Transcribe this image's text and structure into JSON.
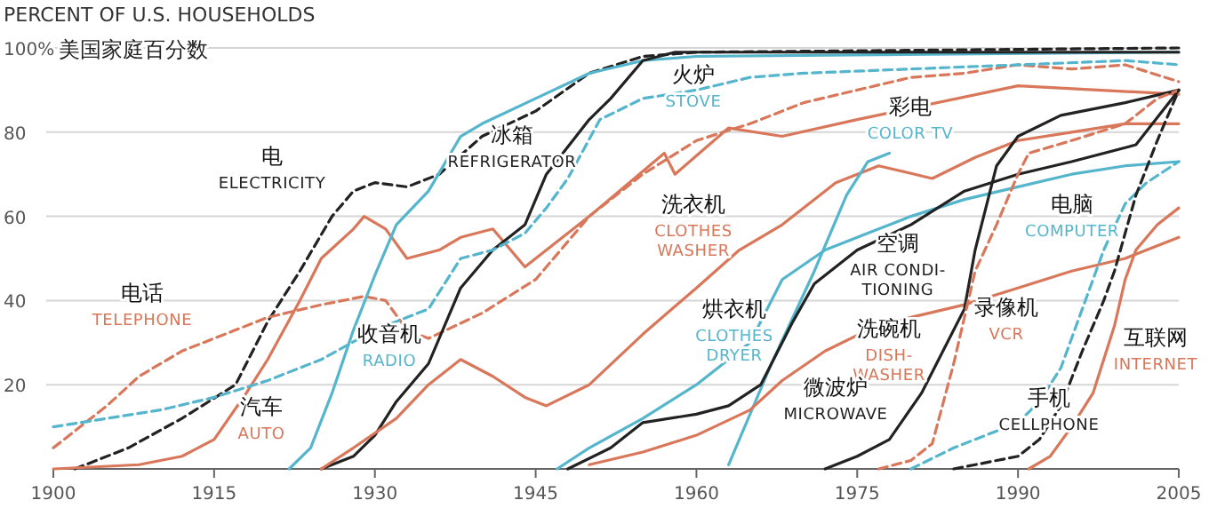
{
  "chart_data": {
    "type": "line",
    "title": "PERCENT OF U.S. HOUSEHOLDS",
    "subtitle": "美国家庭百分数",
    "xlim": [
      1900,
      2005
    ],
    "ylim": [
      0,
      100
    ],
    "xticks": [
      1900,
      1915,
      1930,
      1945,
      1960,
      1975,
      1990,
      2005
    ],
    "yticks": [
      {
        "value": 20,
        "label": "20"
      },
      {
        "value": 40,
        "label": "40"
      },
      {
        "value": 60,
        "label": "60"
      },
      {
        "value": 80,
        "label": "80"
      },
      {
        "value": 100,
        "label": "100%"
      }
    ],
    "grid": "y",
    "series": [
      {
        "name": "电\nELECTRICITY",
        "color": "#222222",
        "line_style": "dashed",
        "x": [
          1902,
          1907,
          1912,
          1917,
          1920,
          1923,
          1926,
          1928,
          1930,
          1933,
          1936,
          1940,
          1945,
          1950,
          1955,
          1960,
          2005
        ],
        "values": [
          0,
          5,
          12,
          20,
          35,
          47,
          60,
          66,
          68,
          67,
          70,
          79,
          85,
          94,
          98,
          99,
          100
        ]
      },
      {
        "name": "电话\nTELEPHONE",
        "color": "#d9775a",
        "line_style": "dashed",
        "x": [
          1900,
          1905,
          1908,
          1912,
          1917,
          1920,
          1925,
          1929,
          1931,
          1933,
          1935,
          1940,
          1945,
          1950,
          1955,
          1960,
          1965,
          1970,
          1975,
          1980,
          1985,
          1990,
          1995,
          2000,
          2005
        ],
        "values": [
          5,
          15,
          22,
          28,
          33,
          36,
          39,
          41,
          40,
          33,
          31,
          37,
          45,
          60,
          70,
          78,
          82,
          87,
          90,
          93,
          94,
          96,
          95,
          96,
          92
        ]
      },
      {
        "name": "汽车\nAUTO",
        "color": "#d9775a",
        "line_style": "solid",
        "x": [
          1900,
          1908,
          1912,
          1915,
          1918,
          1920,
          1923,
          1925,
          1928,
          1929,
          1931,
          1933,
          1936,
          1938,
          1941,
          1944,
          1946,
          1950,
          1957,
          1958,
          1963,
          1968,
          1975,
          1990,
          2005
        ],
        "values": [
          0,
          1,
          3,
          7,
          18,
          26,
          40,
          50,
          57,
          60,
          57,
          50,
          52,
          55,
          57,
          48,
          52,
          60,
          75,
          70,
          81,
          79,
          83,
          91,
          89
        ]
      },
      {
        "name": "收音机\nRADIO",
        "color": "#55b5cc",
        "line_style": "solid",
        "x": [
          1922,
          1924,
          1926,
          1928,
          1930,
          1932,
          1935,
          1938,
          1940,
          1945,
          1950,
          1955,
          1960,
          2005
        ],
        "values": [
          0,
          5,
          18,
          33,
          46,
          58,
          66,
          79,
          82,
          88,
          94,
          97,
          98,
          99
        ]
      },
      {
        "name": "冰箱\nREFRIGERATOR",
        "color": "#222222",
        "line_style": "solid",
        "x": [
          1925,
          1928,
          1930,
          1932,
          1935,
          1938,
          1941,
          1944,
          1946,
          1950,
          1952,
          1955,
          1958,
          2005
        ],
        "values": [
          0,
          3,
          8,
          16,
          25,
          43,
          52,
          58,
          70,
          83,
          88,
          97,
          99,
          99
        ]
      },
      {
        "name": "火炉\nSTOVE",
        "color": "#55b5cc",
        "line_style": "dashed",
        "x": [
          1900,
          1905,
          1910,
          1915,
          1920,
          1925,
          1930,
          1933,
          1935,
          1938,
          1941,
          1944,
          1946,
          1948,
          1951,
          1955,
          1960,
          1965,
          1970,
          1980,
          1990,
          2000,
          2005
        ],
        "values": [
          10,
          12,
          14,
          17,
          21,
          26,
          33,
          36,
          38,
          50,
          52,
          56,
          62,
          69,
          83,
          88,
          90,
          93,
          94,
          95,
          96,
          97,
          96
        ]
      },
      {
        "name": "洗衣机\nCLOTHES\nWASHER",
        "color": "#d9775a",
        "line_style": "solid",
        "x": [
          1925,
          1928,
          1932,
          1935,
          1938,
          1941,
          1944,
          1946,
          1950,
          1955,
          1960,
          1964,
          1968,
          1973,
          1977,
          1982,
          1986,
          1990,
          1995,
          2000,
          2005
        ],
        "values": [
          0,
          5,
          12,
          20,
          26,
          22,
          17,
          15,
          20,
          32,
          43,
          52,
          58,
          68,
          72,
          69,
          74,
          78,
          80,
          82,
          82
        ]
      },
      {
        "name": "烘衣机\nCLOTHES\nDRYER",
        "color": "#55b5cc",
        "line_style": "solid",
        "x": [
          1947,
          1950,
          1955,
          1960,
          1965,
          1968,
          1972,
          1976,
          1980,
          1985,
          1990,
          1995,
          2000,
          2005
        ],
        "values": [
          0,
          5,
          12,
          20,
          30,
          45,
          52,
          56,
          60,
          64,
          67,
          70,
          72,
          73
        ]
      },
      {
        "name": "彩电\nCOLOR TV",
        "color": "#55b5cc",
        "line_style": "solid",
        "x": [
          1963,
          1967,
          1971,
          1974,
          1976,
          1978
        ],
        "values": [
          1,
          25,
          47,
          65,
          73,
          75
        ]
      },
      {
        "name": "空调\nAIR CONDI-\nTIONING",
        "color": "#222222",
        "line_style": "solid",
        "x": [
          1948,
          1952,
          1955,
          1960,
          1963,
          1966,
          1969,
          1971,
          1975,
          1980,
          1985,
          1990,
          1995,
          2001,
          2005
        ],
        "values": [
          0,
          5,
          11,
          13,
          15,
          20,
          35,
          44,
          52,
          58,
          66,
          70,
          73,
          77,
          90
        ]
      },
      {
        "name": "洗碗机\nDISH-\nWASHER",
        "color": "#d9775a",
        "line_style": "solid",
        "x": [
          1950,
          1955,
          1960,
          1965,
          1968,
          1972,
          1976,
          1980,
          1985,
          1990,
          1995,
          2000,
          2005
        ],
        "values": [
          1,
          4,
          8,
          14,
          21,
          28,
          33,
          36,
          39,
          43,
          47,
          50,
          55
        ]
      },
      {
        "name": "微波炉\nMICROWAVE",
        "color": "#222222",
        "line_style": "solid",
        "x": [
          1972,
          1975,
          1978,
          1981,
          1983,
          1985,
          1986,
          1988,
          1990,
          1994,
          2000,
          2005
        ],
        "values": [
          0,
          3,
          7,
          18,
          28,
          38,
          52,
          72,
          79,
          84,
          87,
          90
        ]
      },
      {
        "name": "录像机\nVCR",
        "color": "#d9775a",
        "line_style": "dashed",
        "x": [
          1977,
          1980,
          1982,
          1984,
          1986,
          1988,
          1990,
          1991,
          1995,
          2000,
          2003,
          2005
        ],
        "values": [
          0,
          2,
          6,
          25,
          47,
          58,
          70,
          75,
          78,
          82,
          88,
          90
        ]
      },
      {
        "name": "电脑\nCOMPUTER",
        "color": "#55b5cc",
        "line_style": "dashed",
        "x": [
          1980,
          1984,
          1987,
          1990,
          1992,
          1994,
          1996,
          1998,
          2000,
          2002,
          2005
        ],
        "values": [
          0,
          5,
          8,
          11,
          16,
          24,
          38,
          52,
          63,
          68,
          73
        ]
      },
      {
        "name": "手机\nCELLPHONE",
        "color": "#222222",
        "line_style": "dashed",
        "x": [
          1984,
          1988,
          1990,
          1992,
          1994,
          1996,
          1998,
          1999,
          2001,
          2003,
          2005
        ],
        "values": [
          0,
          2,
          3,
          7,
          15,
          28,
          40,
          47,
          65,
          78,
          90
        ]
      },
      {
        "name": "互联网\nINTERNET",
        "color": "#d9775a",
        "line_style": "solid",
        "x": [
          1991,
          1993,
          1995,
          1997,
          1998,
          1999,
          2000,
          2001,
          2003,
          2005
        ],
        "values": [
          0,
          3,
          10,
          18,
          26,
          34,
          45,
          52,
          58,
          62
        ]
      }
    ]
  }
}
